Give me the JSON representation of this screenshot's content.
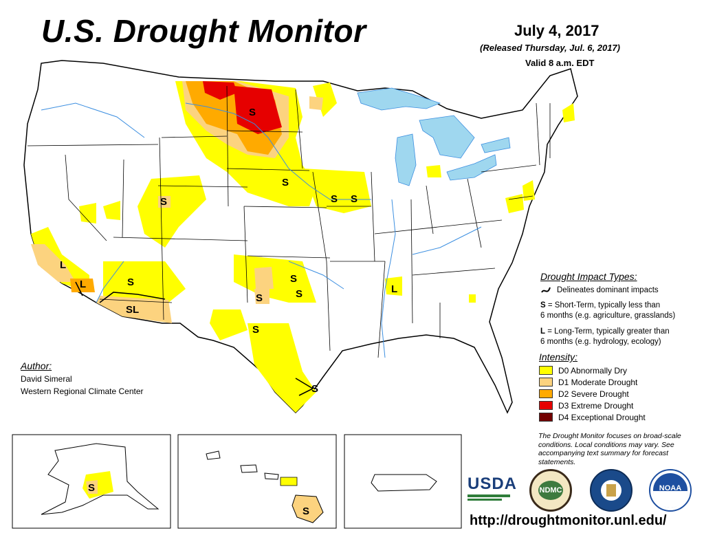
{
  "header": {
    "title": "U.S. Drought Monitor",
    "date": "July 4, 2017",
    "released": "(Released Thursday, Jul. 6, 2017)",
    "valid": "Valid 8 a.m. EDT"
  },
  "author": {
    "heading": "Author:",
    "name": "David Simeral",
    "organization": "Western Regional Climate Center"
  },
  "impact_types": {
    "heading": "Drought Impact Types:",
    "dominant": "Delineates dominant impacts",
    "short_key": "S",
    "short_text_1": "= Short-Term, typically less than",
    "short_text_2": "6 months (e.g. agriculture, grasslands)",
    "long_key": "L",
    "long_text_1": "= Long-Term, typically greater than",
    "long_text_2": "6 months (e.g. hydrology, ecology)"
  },
  "intensity": {
    "heading": "Intensity:",
    "levels": [
      {
        "label": "D0 Abnormally Dry",
        "color": "#ffff00"
      },
      {
        "label": "D1 Moderate Drought",
        "color": "#fcd37f"
      },
      {
        "label": "D2 Severe Drought",
        "color": "#ffaa00"
      },
      {
        "label": "D3 Extreme Drought",
        "color": "#e60000"
      },
      {
        "label": "D4 Exceptional Drought",
        "color": "#730000"
      }
    ]
  },
  "note": "The Drought Monitor focuses on broad-scale conditions. Local conditions may vary. See accompanying text summary for forecast statements.",
  "logos": {
    "usda": "USDA",
    "ndmc": "NDMC",
    "noaa": "NOAA"
  },
  "url": "http://droughtmonitor.unl.edu/",
  "map_labels": {
    "s_montana": "S",
    "s_nebraska": "S",
    "s_iowa_1": "S",
    "s_iowa_2": "S",
    "s_utah": "S",
    "s_arizona": "S",
    "s_oklahoma_1": "S",
    "s_oklahoma_2": "S",
    "s_texas_n": "S",
    "s_texas_w": "S",
    "s_texas_coast": "S",
    "l_california_1": "L",
    "l_california_2": "L",
    "sl_arizona": "SL",
    "l_mississippi": "L",
    "s_alaska": "S",
    "s_hawaii": "S"
  },
  "colors": {
    "water": "#9fd7ef",
    "state_border": "#000000",
    "river": "#3b8ee0"
  }
}
